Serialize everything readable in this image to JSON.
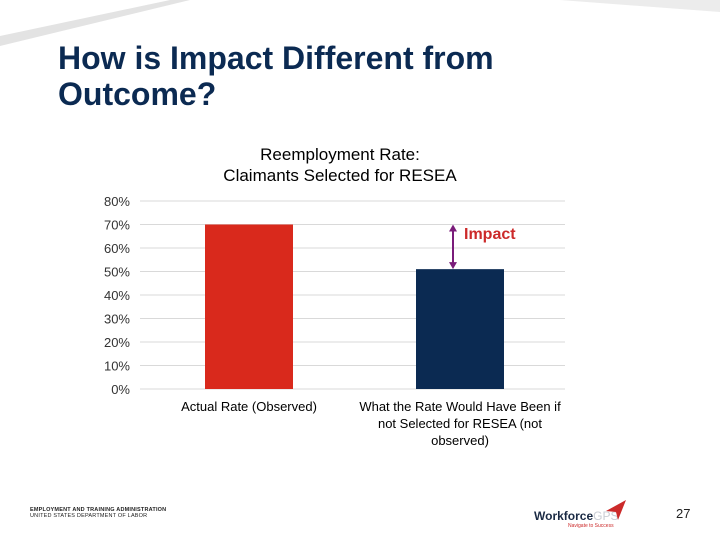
{
  "slide": {
    "title": "How is Impact Different from Outcome?",
    "page_number": "27",
    "footer_org_line1": "EMPLOYMENT AND TRAINING ADMINISTRATION",
    "footer_org_line2": "UNITED STATES DEPARTMENT OF LABOR",
    "logo_word_a": "Workforce",
    "logo_word_b": "GPS",
    "logo_tagline": "Navigate to Success",
    "colors": {
      "title": "#0b2a52",
      "accent_red": "#d9291c",
      "navy": "#0b2a52"
    }
  },
  "chart_data": {
    "type": "bar",
    "title_line1": "Reemployment Rate:",
    "title_line2": "Claimants Selected for RESEA",
    "categories": [
      "Actual Rate (Observed)",
      "What the Rate Would Have Been if not Selected for RESEA (not observed)"
    ],
    "values": [
      70,
      51
    ],
    "bar_colors": [
      "#d9291c",
      "#0b2a52"
    ],
    "ylim": [
      0,
      80
    ],
    "yticks": [
      "0%",
      "10%",
      "20%",
      "30%",
      "40%",
      "50%",
      "60%",
      "70%",
      "80%"
    ],
    "grid": true,
    "annotation": {
      "text": "Impact",
      "between": [
        70,
        51
      ]
    }
  }
}
